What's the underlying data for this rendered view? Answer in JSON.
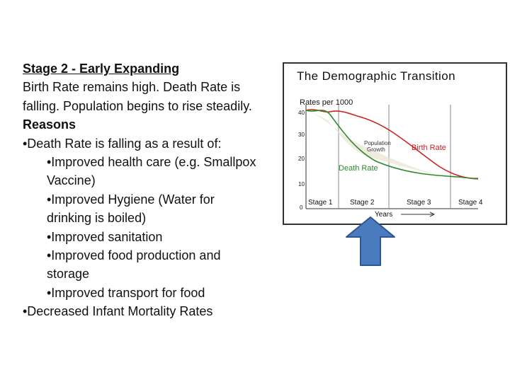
{
  "text": {
    "heading": "Stage 2 - Early Expanding",
    "p1": "Birth Rate remains high. Death Rate is",
    "p2": "falling. Population begins to rise steadily.",
    "reasons": "Reasons",
    "b1": "•Death Rate is falling as a result of:",
    "b2": "•Improved health care (e.g. Smallpox",
    "b2b": "Vaccine)",
    "b3": "•Improved Hygiene (Water for",
    "b3b": "drinking is boiled)",
    "b4": "•Improved sanitation",
    "b5": "•Improved food production and",
    "b5b": "storage",
    "b6": "•Improved transport for food",
    "b7": "•Decreased Infant Mortality Rates"
  },
  "diagram": {
    "title": "The Demographic Transition",
    "y_axis_label": "Rates per 1000",
    "y_ticks": [
      "40",
      "30",
      "20",
      "10",
      "0"
    ],
    "stages": [
      "Stage 1",
      "Stage 2",
      "Stage 3",
      "Stage 4"
    ],
    "x_axis_label": "Years",
    "birth_rate_label": "Birth Rate",
    "death_rate_label": "Death Rate",
    "population_label_1": "Population",
    "population_label_2": "Growth",
    "colors": {
      "birth_rate": "#cc2222",
      "death_rate": "#2a8a2a",
      "arrow_fill": "#4a7bbf",
      "arrow_stroke": "#2f5690"
    }
  }
}
